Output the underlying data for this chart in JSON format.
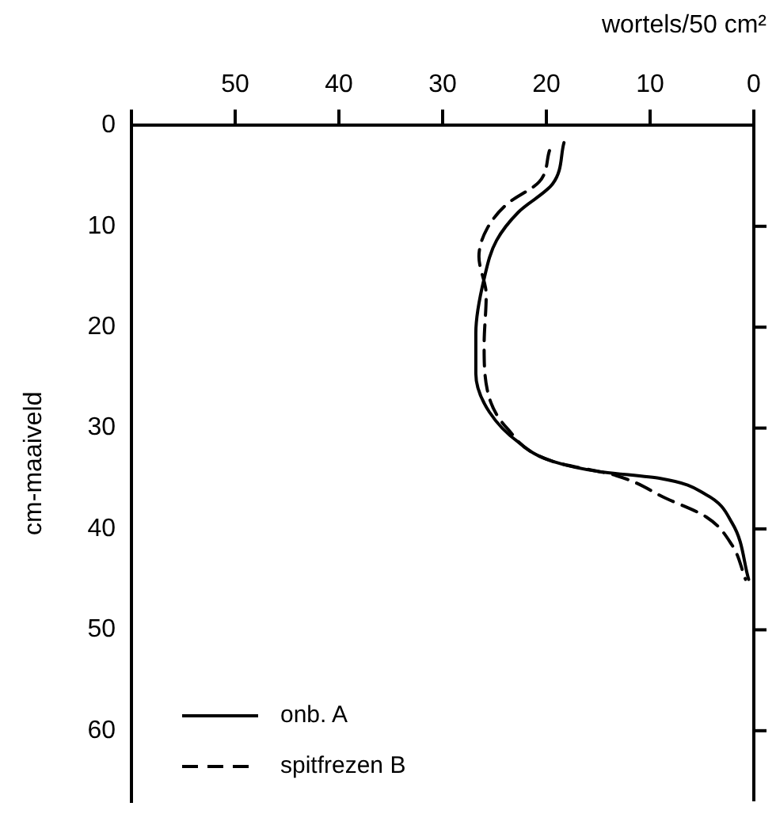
{
  "chart_data": {
    "type": "line",
    "xlabel": "wortels/50 cm²",
    "ylabel": "cm-maaiveld",
    "xlim": [
      60,
      0
    ],
    "xticks": [
      {
        "value": 60,
        "label": null
      },
      50,
      40,
      30,
      20,
      10,
      0
    ],
    "ylim": [
      67,
      0
    ],
    "yticks": [
      0,
      10,
      20,
      30,
      40,
      50,
      60
    ],
    "grid": false,
    "legend": "bottom left",
    "marker": "none",
    "series": [
      {
        "name": "onb. A",
        "color": "#000000",
        "line_style": "solid",
        "x": [
          18.3,
          19.4,
          22.7,
          24.8,
          26,
          26.8,
          26.8,
          25.5,
          22.7,
          19.4,
          15,
          9,
          4.6,
          2.1,
          0.5
        ],
        "values": [
          1.7,
          5.8,
          8.6,
          11.4,
          15.2,
          20.6,
          24.6,
          28.4,
          31.4,
          33.3,
          34.3,
          35,
          36.6,
          39.4,
          45
        ]
      },
      {
        "name": "spitfrezen B",
        "color": "#000000",
        "line_style": "dashed",
        "x": [
          19.7,
          20.7,
          23.8,
          25.7,
          26.5,
          25.8,
          26,
          25.7,
          23.8,
          19.4,
          13.3,
          8.4,
          4.6,
          2.1,
          0.8
        ],
        "values": [
          2.5,
          5.6,
          7.8,
          10.2,
          13,
          16.8,
          21.8,
          26.2,
          30,
          33.3,
          34.7,
          37,
          38.8,
          41.6,
          45
        ]
      }
    ]
  }
}
